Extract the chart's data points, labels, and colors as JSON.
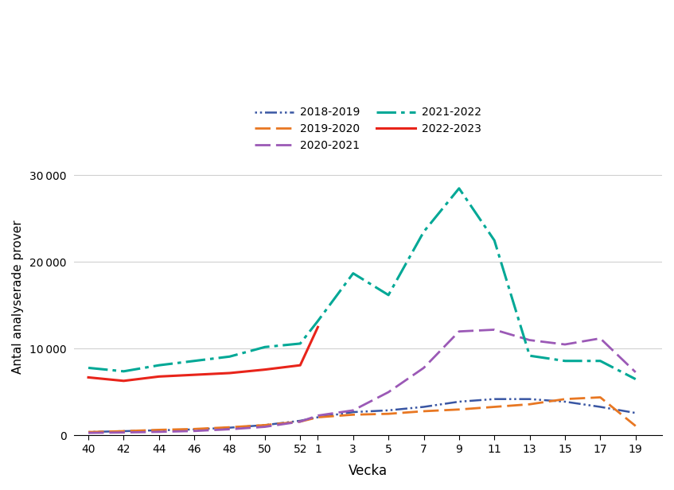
{
  "ylabel": "Antal analyserade prover",
  "xlabel": "Vecka",
  "x_tick_labels": [
    "40",
    "42",
    "44",
    "46",
    "48",
    "50",
    "52",
    "1",
    "3",
    "5",
    "7",
    "9",
    "11",
    "13",
    "15",
    "17",
    "19"
  ],
  "tick_week_positions": [
    0,
    2,
    4,
    6,
    8,
    10,
    12,
    13,
    15,
    17,
    19,
    21,
    23,
    25,
    27,
    29,
    31
  ],
  "ylim": [
    0,
    32000
  ],
  "yticks": [
    0,
    10000,
    20000,
    30000
  ],
  "series": [
    {
      "name": "2018-2019",
      "color": "#3956a3",
      "linewidth": 1.8,
      "linestyle_type": "dotdash",
      "x": [
        0,
        2,
        4,
        6,
        8,
        10,
        12,
        13,
        15,
        17,
        19,
        21,
        23,
        25,
        27,
        29,
        31
      ],
      "y": [
        400,
        500,
        600,
        700,
        900,
        1200,
        1700,
        2100,
        2700,
        2900,
        3300,
        3900,
        4200,
        4200,
        3900,
        3300,
        2600
      ]
    },
    {
      "name": "2019-2020",
      "color": "#e87722",
      "linewidth": 2.0,
      "linestyle_type": "dashed",
      "x": [
        0,
        2,
        4,
        6,
        8,
        10,
        12,
        13,
        15,
        17,
        19,
        21,
        23,
        25,
        27,
        29,
        31
      ],
      "y": [
        400,
        500,
        650,
        750,
        950,
        1200,
        1600,
        2100,
        2400,
        2500,
        2800,
        3000,
        3300,
        3600,
        4200,
        4400,
        1100
      ]
    },
    {
      "name": "2020-2021",
      "color": "#9b59b6",
      "linewidth": 2.0,
      "linestyle_type": "dashed",
      "x": [
        0,
        2,
        4,
        6,
        8,
        10,
        12,
        13,
        15,
        17,
        19,
        21,
        23,
        25,
        27,
        29,
        31
      ],
      "y": [
        300,
        350,
        420,
        520,
        720,
        1000,
        1600,
        2300,
        2900,
        5000,
        7800,
        12000,
        12200,
        11000,
        10500,
        11200,
        7300
      ]
    },
    {
      "name": "2021-2022",
      "color": "#00a896",
      "linewidth": 2.2,
      "linestyle_type": "dashdot",
      "x": [
        0,
        2,
        4,
        6,
        8,
        10,
        12,
        13,
        15,
        17,
        19,
        21,
        23,
        25,
        27,
        29,
        31
      ],
      "y": [
        7800,
        7400,
        8100,
        8600,
        9100,
        10200,
        10600,
        13200,
        18700,
        16200,
        23500,
        28500,
        22500,
        9200,
        8600,
        8600,
        6500
      ]
    },
    {
      "name": "2022-2023",
      "color": "#e8241a",
      "linewidth": 2.2,
      "linestyle_type": "solid",
      "x": [
        0,
        2,
        4,
        6,
        8,
        10,
        12,
        13
      ],
      "y": [
        6700,
        6300,
        6800,
        7000,
        7200,
        7600,
        8100,
        12500
      ]
    }
  ],
  "background_color": "#ffffff",
  "grid_color": "#d0d0d0"
}
